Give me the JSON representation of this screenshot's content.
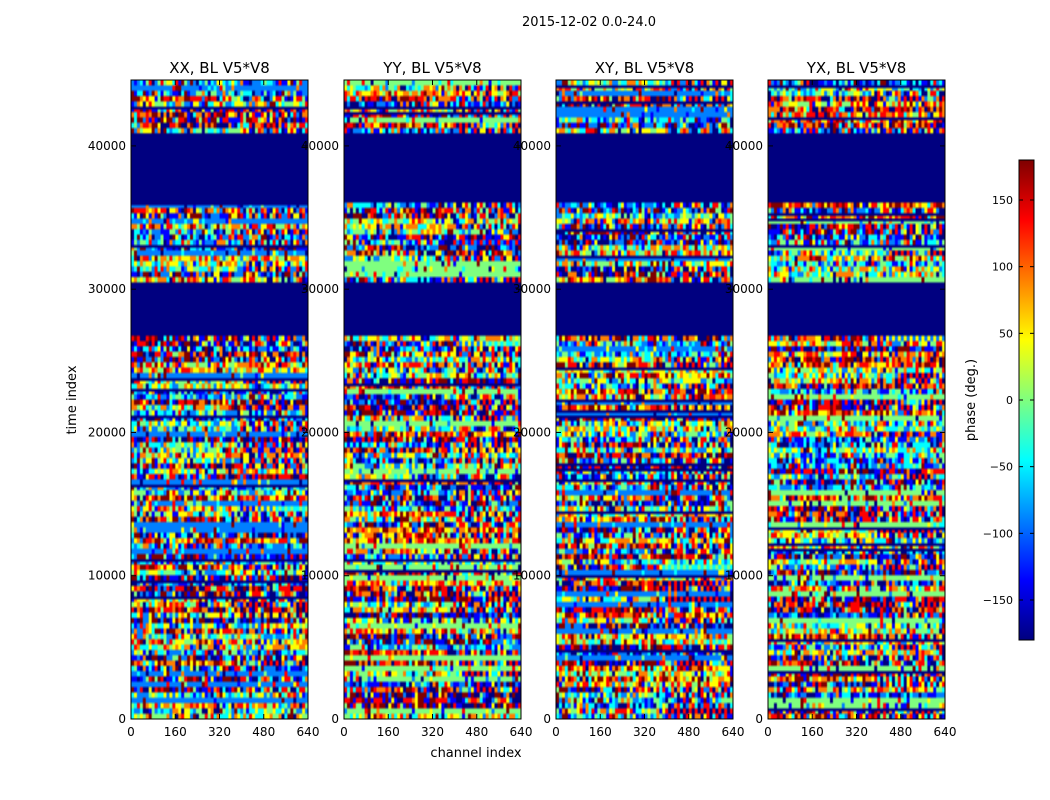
{
  "chart_data": {
    "type": "heatmap",
    "suptitle": "2015-12-02 0.0-24.0",
    "xlabel": "channel index",
    "ylabel": "time index",
    "xlim": [
      0,
      640
    ],
    "ylim": [
      0,
      44600
    ],
    "xticks": [
      0,
      160,
      320,
      480,
      640
    ],
    "yticks": [
      0,
      10000,
      20000,
      30000,
      40000
    ],
    "colorbar": {
      "label": "phase (deg.)",
      "range": [
        -180,
        180
      ],
      "ticks": [
        -150,
        -100,
        -50,
        0,
        50,
        100,
        150
      ],
      "tick_labels": [
        "−150",
        "−100",
        "−50",
        "0",
        "50",
        "100",
        "150"
      ],
      "colormap": "jet"
    },
    "blank_time_ranges": [
      [
        36000,
        41000
      ],
      [
        26800,
        30500
      ]
    ],
    "panels": [
      {
        "title": "XX, BL V5*V8"
      },
      {
        "title": "YY, BL V5*V8"
      },
      {
        "title": "XY, BL V5*V8"
      },
      {
        "title": "YX, BL V5*V8"
      }
    ]
  },
  "colors": {
    "blank": "#000080",
    "jet": [
      "#00007f",
      "#0000ff",
      "#007fff",
      "#00ffff",
      "#7fff7f",
      "#ffff00",
      "#ff7f00",
      "#ff0000",
      "#7f0000"
    ]
  }
}
